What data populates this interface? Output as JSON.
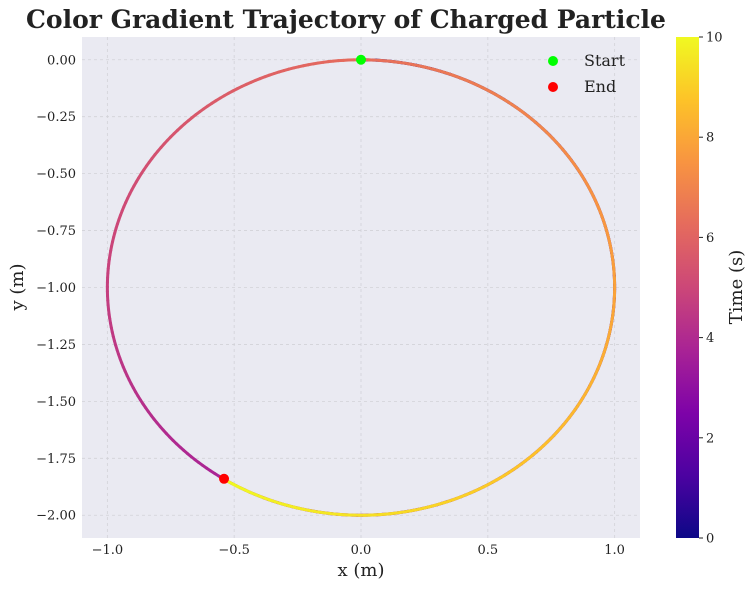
{
  "chart_data": {
    "type": "scatter",
    "title": "Color Gradient Trajectory of Charged Particle",
    "xlabel": "x (m)",
    "ylabel": "y (m)",
    "xlim": [
      -1.1,
      1.1
    ],
    "ylim": [
      -2.1,
      0.1
    ],
    "xticks": [
      -1.0,
      -0.5,
      0.0,
      0.5,
      1.0
    ],
    "xtick_labels": [
      "−1.0",
      "−0.5",
      "0.0",
      "0.5",
      "1.0"
    ],
    "yticks": [
      0.0,
      -0.25,
      -0.5,
      -0.75,
      -1.0,
      -1.25,
      -1.5,
      -1.75,
      -2.0
    ],
    "ytick_labels": [
      "0.00",
      "−0.25",
      "−0.50",
      "−0.75",
      "−1.00",
      "−1.25",
      "−1.50",
      "−1.75",
      "−2.00"
    ],
    "grid": true,
    "trajectory": {
      "shape": "circle",
      "center": [
        0.0,
        -1.0
      ],
      "radius": 1.0,
      "start_point": [
        0.0,
        0.0
      ],
      "end_point": [
        -0.54,
        -1.84
      ],
      "direction": "clockwise",
      "time_range": [
        0,
        10
      ],
      "turns": 1.59
    },
    "points": [
      {
        "name": "Start",
        "x": 0.0,
        "y": 0.0,
        "color": "#00ff00"
      },
      {
        "name": "End",
        "x": -0.54,
        "y": -1.84,
        "color": "#ff0000"
      }
    ],
    "legend": {
      "position": "top-right",
      "entries": [
        "Start",
        "End"
      ]
    },
    "colorbar": {
      "label": "Time (s)",
      "colormap": "plasma",
      "range": [
        0,
        10
      ],
      "ticks": [
        0,
        2,
        4,
        6,
        8,
        10
      ],
      "tick_labels": [
        "0",
        "2",
        "4",
        "6",
        "8",
        "10"
      ]
    }
  },
  "colors": {
    "plot_background": "#eaeaf2",
    "grid": "#d2d2d8",
    "text": "#222222"
  }
}
